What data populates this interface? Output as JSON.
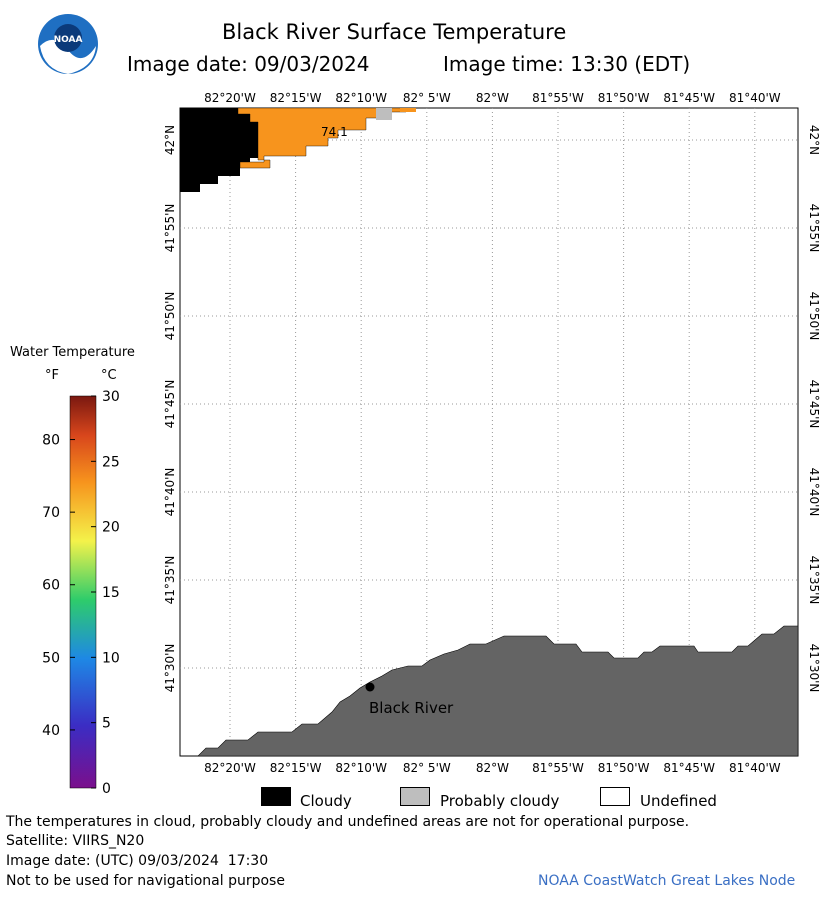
{
  "header": {
    "title": "Black River Surface Temperature",
    "date_label": "Image date: 09/03/2024",
    "time_label": "Image time: 13:30 (EDT)"
  },
  "logo": {
    "text": "NOAA"
  },
  "colorbar": {
    "title": "Water Temperature",
    "unit_f": "°F",
    "unit_c": "°C",
    "f_ticks": [
      "80",
      "70",
      "60",
      "50",
      "40"
    ],
    "c_ticks": [
      "30",
      "25",
      "20",
      "15",
      "10",
      "5",
      "0"
    ]
  },
  "map": {
    "lon_labels": [
      "82°20'W",
      "82°15'W",
      "82°10'W",
      "82° 5'W",
      "82°W",
      "81°55'W",
      "81°50'W",
      "81°45'W",
      "81°40'W"
    ],
    "lat_labels": [
      "42°N",
      "41°55'N",
      "41°50'N",
      "41°45'N",
      "41°40'N",
      "41°35'N",
      "41°30'N"
    ],
    "temp_label": "74.1",
    "place_label": "Black River",
    "colors": {
      "cloud": "#000000",
      "probably_cloudy": "#bebebe",
      "land": "#646464",
      "warm_water": "#f7941d"
    }
  },
  "legend": {
    "items": [
      {
        "label": "Cloudy",
        "color": "#000000"
      },
      {
        "label": "Probably cloudy",
        "color": "#bebebe"
      },
      {
        "label": "Undefined",
        "color": "#ffffff"
      }
    ]
  },
  "footer": {
    "disclaimer": "The temperatures in cloud, probably cloudy and undefined areas are not for operational purpose.",
    "satellite": "Satellite: VIIRS_N20",
    "utc_date": "Image date: (UTC) 09/03/2024  17:30",
    "nav_warning": "Not to be used for navigational purpose",
    "credit": "NOAA CoastWatch Great Lakes Node"
  }
}
